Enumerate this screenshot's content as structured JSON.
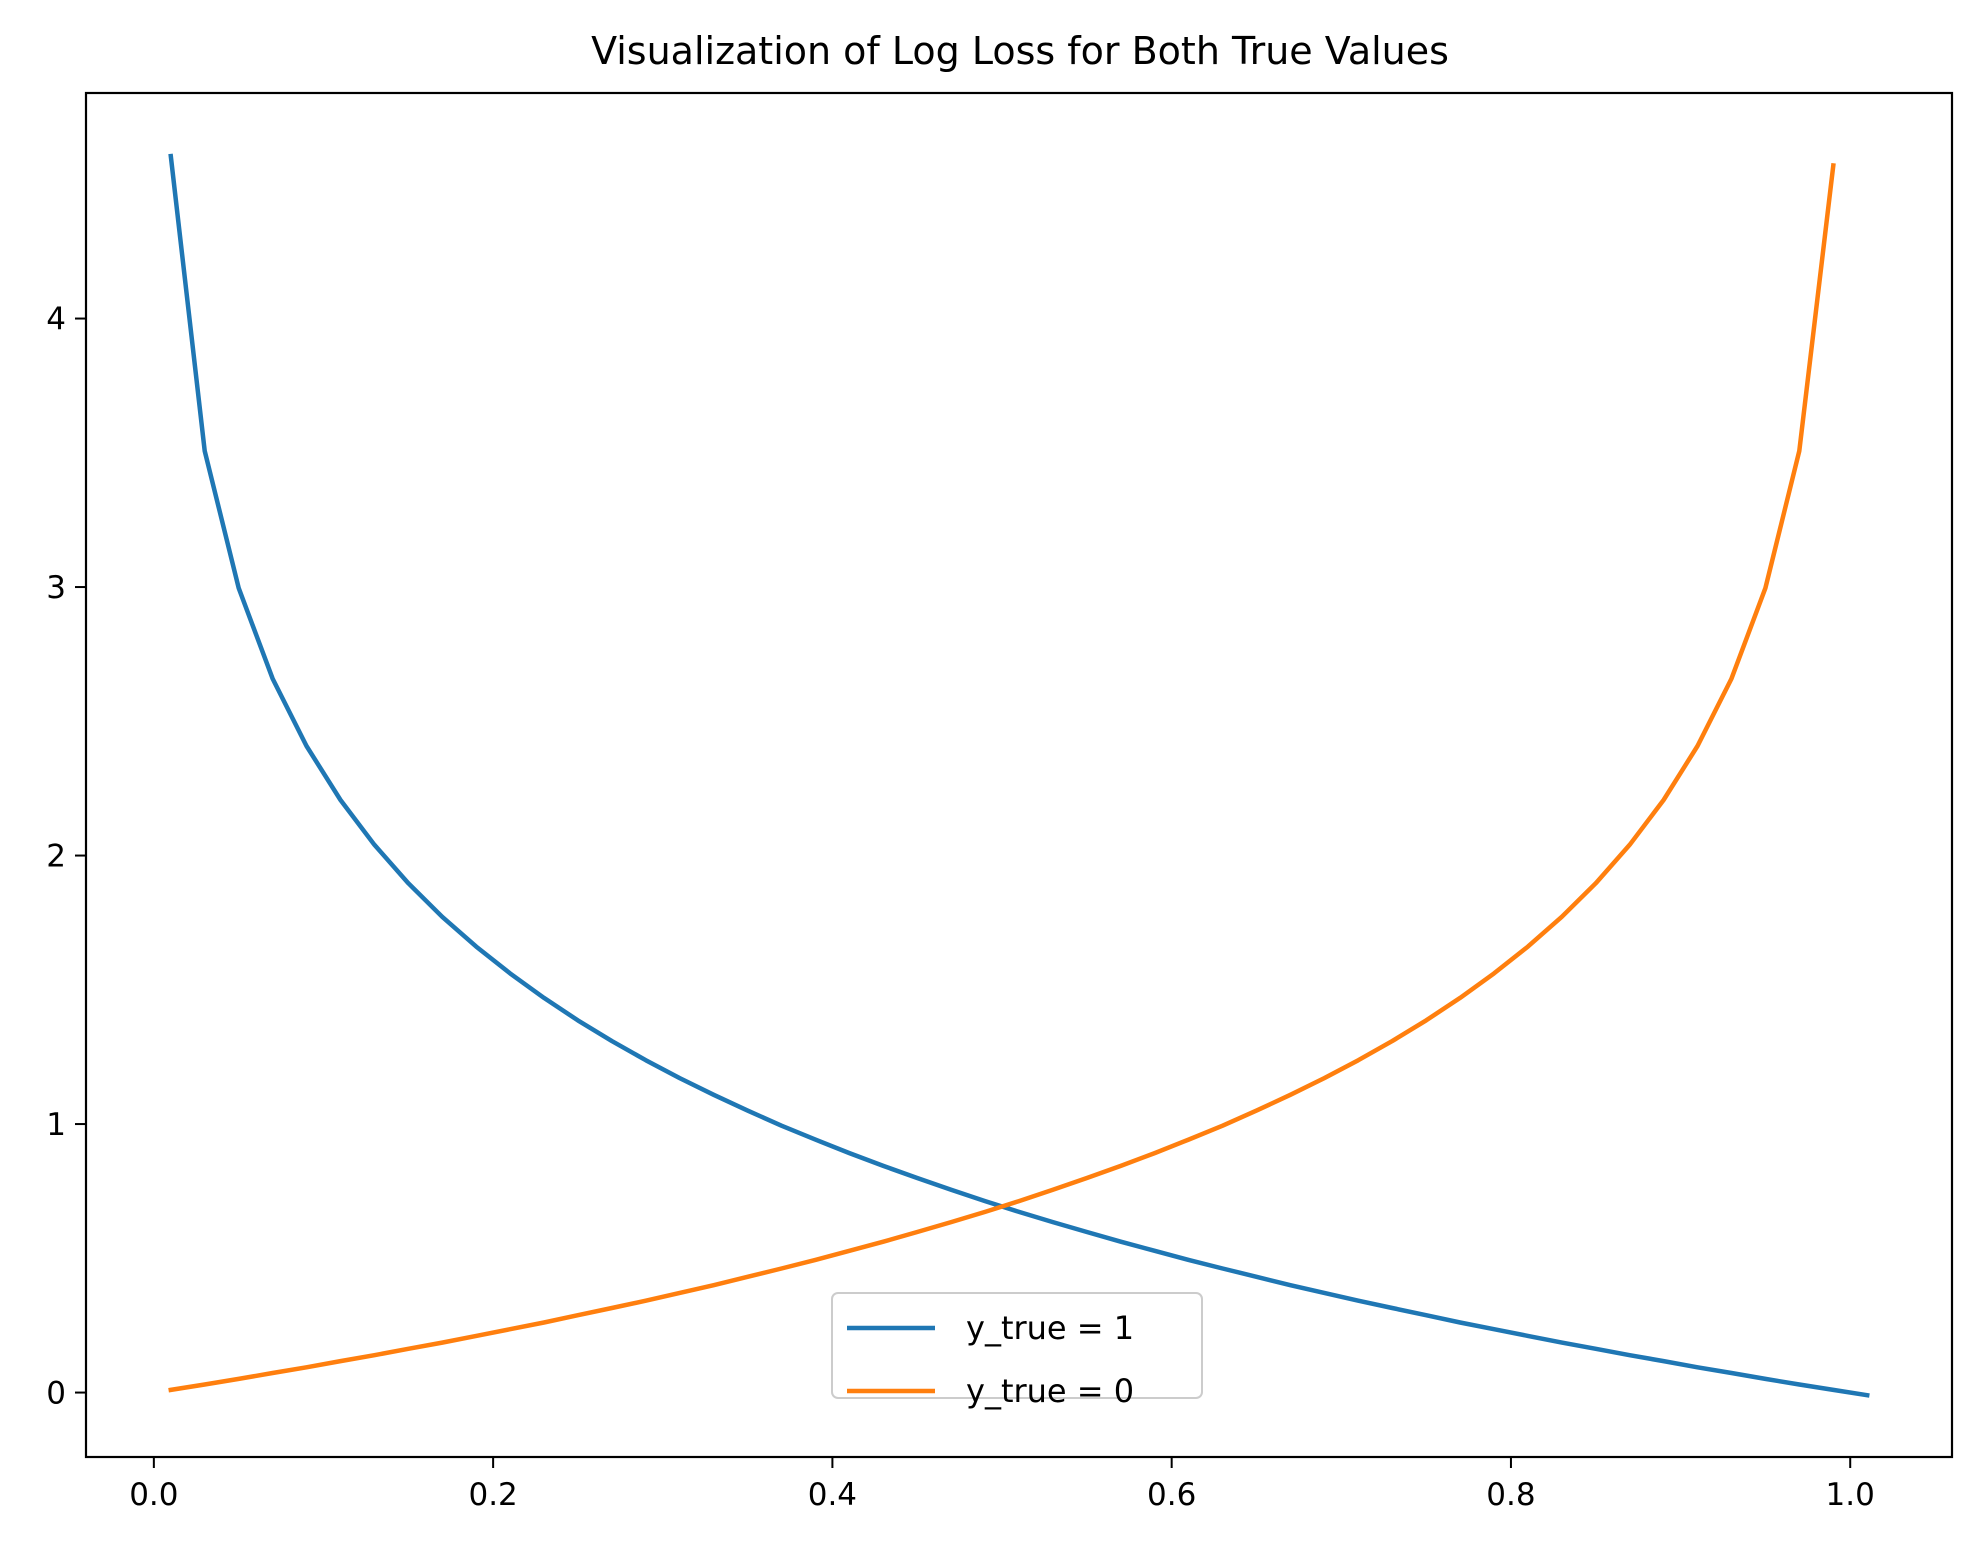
{
  "chart_data": {
    "type": "line",
    "title": "Visualization of Log Loss for Both True Values",
    "xlabel": "",
    "ylabel": "",
    "xlim": [
      -0.04,
      1.06
    ],
    "ylim": [
      -0.24,
      4.84
    ],
    "x_ticks": [
      "0.0",
      "0.2",
      "0.4",
      "0.6",
      "0.8",
      "1.0"
    ],
    "y_ticks": [
      "0",
      "1",
      "2",
      "3",
      "4"
    ],
    "grid": false,
    "legend_position": "lower center",
    "series": [
      {
        "name": "y_true = 1",
        "color": "#1f77b4",
        "points": [
          [
            0.01,
            4.605
          ],
          [
            0.03,
            3.507
          ],
          [
            0.05,
            2.996
          ],
          [
            0.07,
            2.659
          ],
          [
            0.09,
            2.408
          ],
          [
            0.11,
            2.207
          ],
          [
            0.13,
            2.04
          ],
          [
            0.15,
            1.897
          ],
          [
            0.17,
            1.772
          ],
          [
            0.19,
            1.661
          ],
          [
            0.21,
            1.561
          ],
          [
            0.23,
            1.47
          ],
          [
            0.25,
            1.386
          ],
          [
            0.27,
            1.309
          ],
          [
            0.29,
            1.238
          ],
          [
            0.31,
            1.171
          ],
          [
            0.33,
            1.109
          ],
          [
            0.35,
            1.05
          ],
          [
            0.37,
            0.994
          ],
          [
            0.39,
            0.942
          ],
          [
            0.41,
            0.892
          ],
          [
            0.43,
            0.844
          ],
          [
            0.45,
            0.799
          ],
          [
            0.47,
            0.755
          ],
          [
            0.49,
            0.713
          ],
          [
            0.51,
            0.673
          ],
          [
            0.53,
            0.635
          ],
          [
            0.55,
            0.598
          ],
          [
            0.57,
            0.562
          ],
          [
            0.59,
            0.528
          ],
          [
            0.61,
            0.494
          ],
          [
            0.63,
            0.462
          ],
          [
            0.65,
            0.431
          ],
          [
            0.67,
            0.4
          ],
          [
            0.69,
            0.371
          ],
          [
            0.71,
            0.342
          ],
          [
            0.73,
            0.315
          ],
          [
            0.75,
            0.288
          ],
          [
            0.77,
            0.261
          ],
          [
            0.79,
            0.236
          ],
          [
            0.81,
            0.211
          ],
          [
            0.83,
            0.186
          ],
          [
            0.85,
            0.163
          ],
          [
            0.87,
            0.139
          ],
          [
            0.89,
            0.117
          ],
          [
            0.91,
            0.094
          ],
          [
            0.93,
            0.073
          ],
          [
            0.95,
            0.051
          ],
          [
            0.97,
            0.03
          ],
          [
            0.99,
            0.01
          ],
          [
            1.01,
            -0.01
          ]
        ]
      },
      {
        "name": "y_true = 0",
        "color": "#ff7f0e",
        "points": [
          [
            0.01,
            0.01
          ],
          [
            0.03,
            0.03
          ],
          [
            0.05,
            0.051
          ],
          [
            0.07,
            0.073
          ],
          [
            0.09,
            0.094
          ],
          [
            0.11,
            0.117
          ],
          [
            0.13,
            0.139
          ],
          [
            0.15,
            0.163
          ],
          [
            0.17,
            0.186
          ],
          [
            0.19,
            0.211
          ],
          [
            0.21,
            0.236
          ],
          [
            0.23,
            0.261
          ],
          [
            0.25,
            0.288
          ],
          [
            0.27,
            0.315
          ],
          [
            0.29,
            0.342
          ],
          [
            0.31,
            0.371
          ],
          [
            0.33,
            0.4
          ],
          [
            0.35,
            0.431
          ],
          [
            0.37,
            0.462
          ],
          [
            0.39,
            0.494
          ],
          [
            0.41,
            0.528
          ],
          [
            0.43,
            0.562
          ],
          [
            0.45,
            0.598
          ],
          [
            0.47,
            0.635
          ],
          [
            0.49,
            0.673
          ],
          [
            0.51,
            0.713
          ],
          [
            0.53,
            0.755
          ],
          [
            0.55,
            0.799
          ],
          [
            0.57,
            0.844
          ],
          [
            0.59,
            0.892
          ],
          [
            0.61,
            0.942
          ],
          [
            0.63,
            0.994
          ],
          [
            0.65,
            1.05
          ],
          [
            0.67,
            1.109
          ],
          [
            0.69,
            1.171
          ],
          [
            0.71,
            1.238
          ],
          [
            0.73,
            1.309
          ],
          [
            0.75,
            1.386
          ],
          [
            0.77,
            1.47
          ],
          [
            0.79,
            1.561
          ],
          [
            0.81,
            1.661
          ],
          [
            0.83,
            1.772
          ],
          [
            0.85,
            1.897
          ],
          [
            0.87,
            2.04
          ],
          [
            0.89,
            2.207
          ],
          [
            0.91,
            2.408
          ],
          [
            0.93,
            2.659
          ],
          [
            0.95,
            2.996
          ],
          [
            0.97,
            3.507
          ],
          [
            0.99,
            4.57
          ]
        ]
      }
    ]
  }
}
